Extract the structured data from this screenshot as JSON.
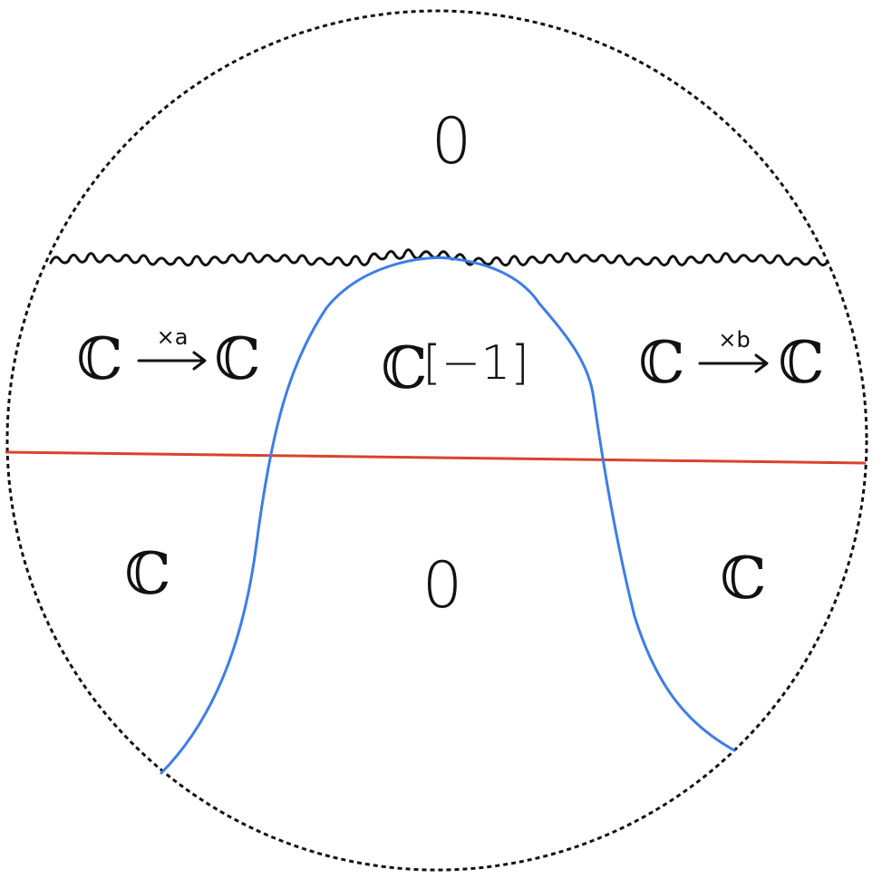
{
  "colors": {
    "boundary": "#111111",
    "wavy_line": "#111111",
    "red_line": "#d9432b",
    "blue_curve": "#3d7de8"
  },
  "labels": {
    "top_region": "0",
    "left_middle": {
      "source": "ℂ",
      "arrow_label": "×a",
      "target": "ℂ"
    },
    "center_middle": {
      "symbol": "ℂ",
      "shift": "[−1]"
    },
    "right_middle": {
      "source": "ℂ",
      "arrow_label": "×b",
      "target": "ℂ"
    },
    "bottom_left": "ℂ",
    "bottom_center": "0",
    "bottom_right": "ℂ"
  }
}
